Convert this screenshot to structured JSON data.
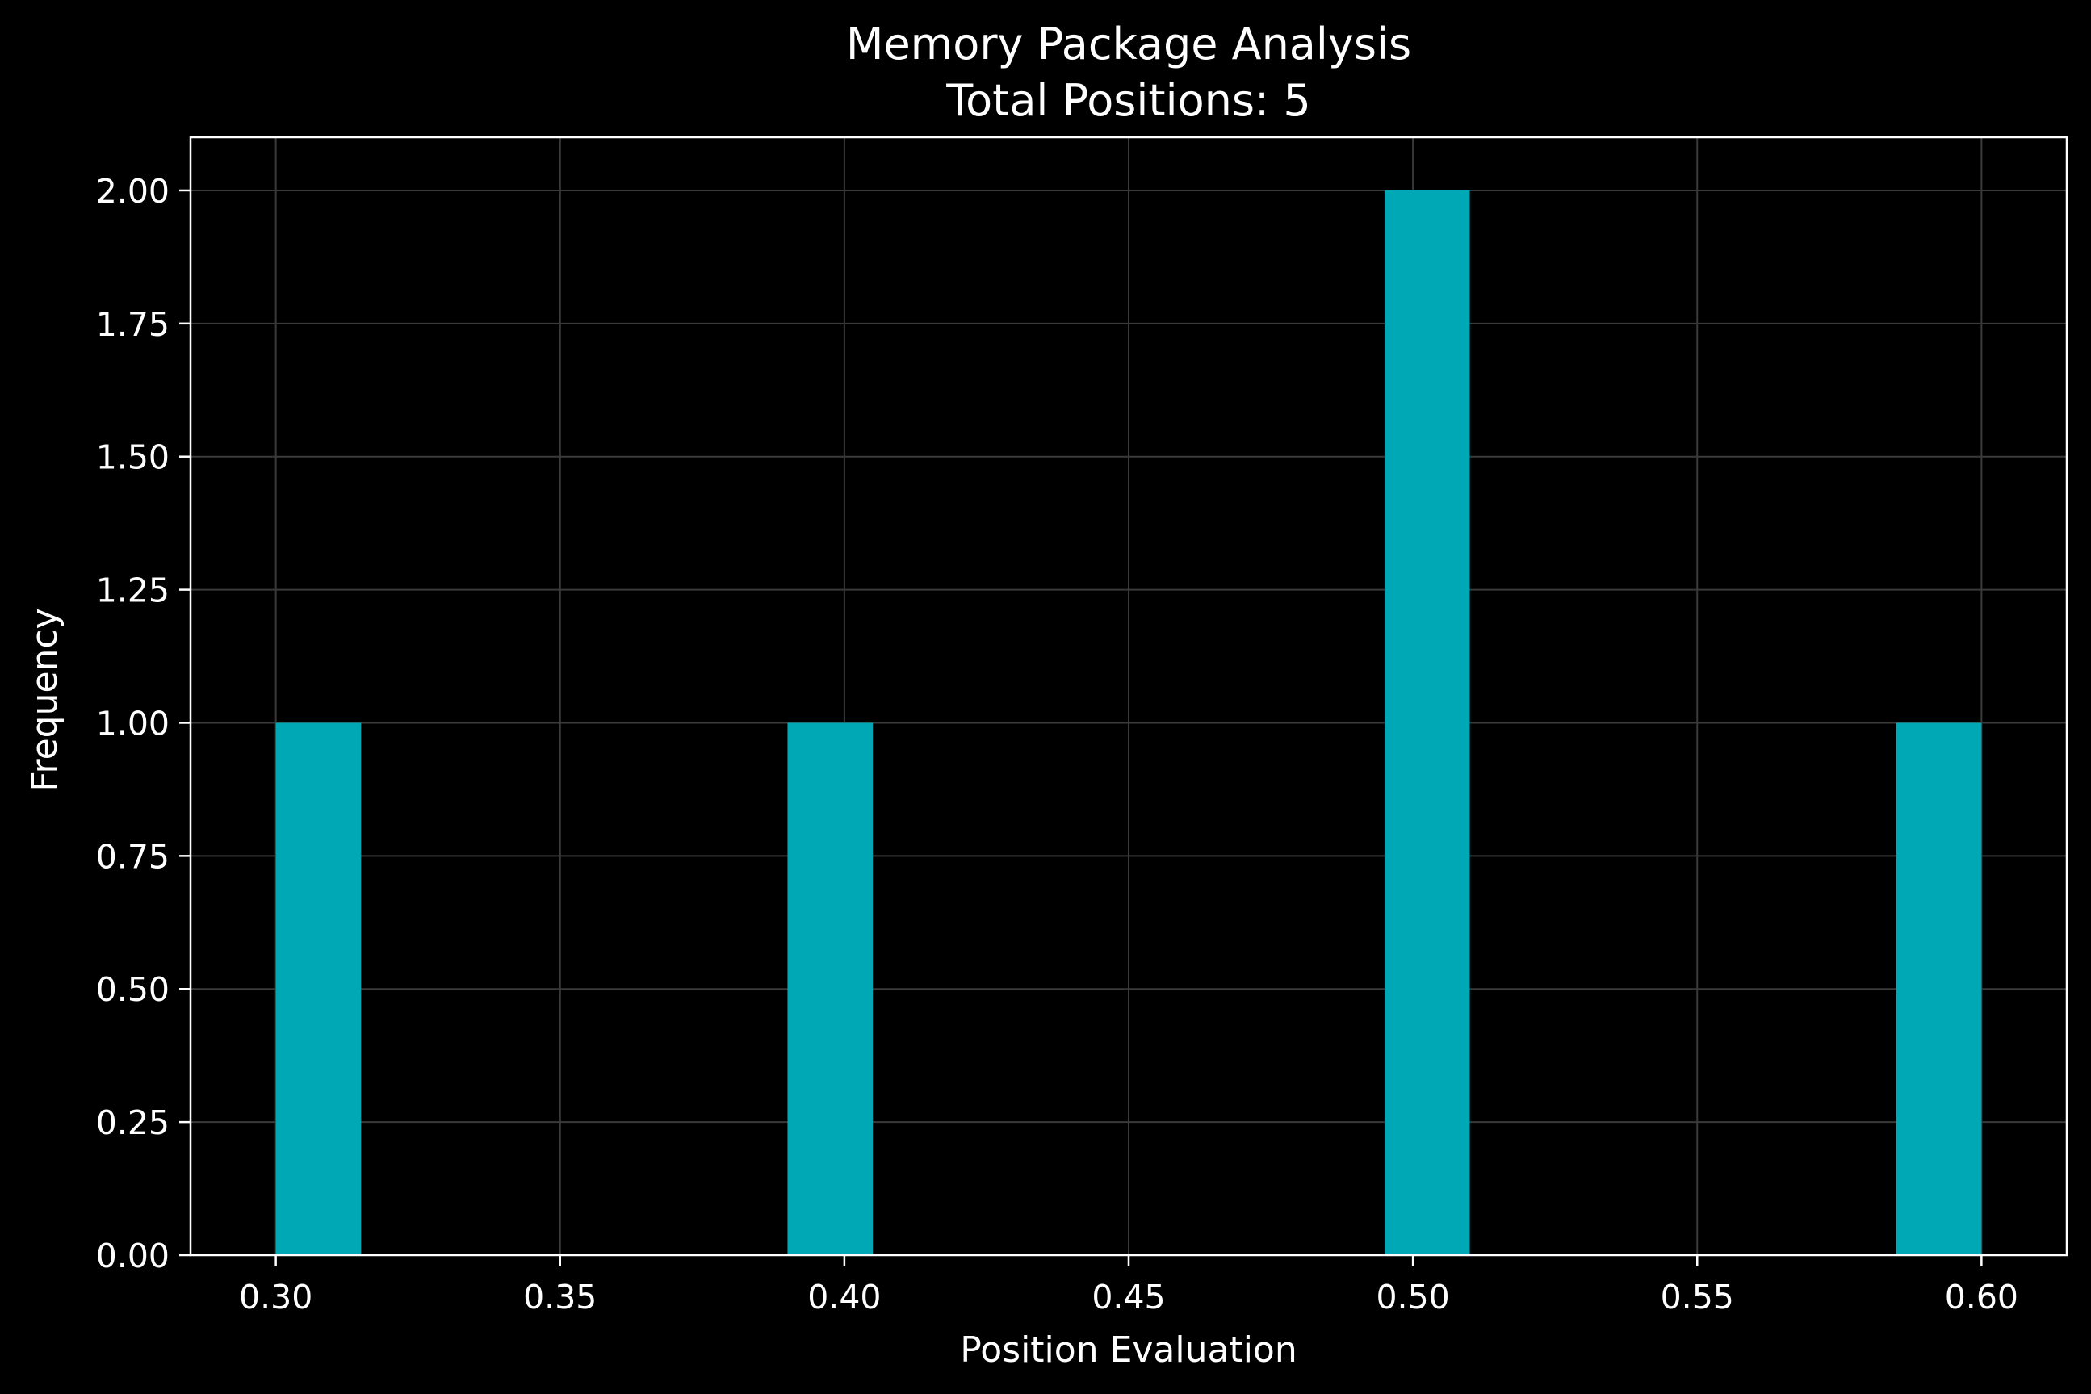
{
  "chart_data": {
    "type": "bar",
    "title": "Memory Package Analysis",
    "subtitle": "Total Positions: 5",
    "xlabel": "Position Evaluation",
    "ylabel": "Frequency",
    "xlim": [
      0.285,
      0.615
    ],
    "ylim": [
      0,
      2.1
    ],
    "x_ticks": [
      "0.30",
      "0.35",
      "0.40",
      "0.45",
      "0.50",
      "0.55",
      "0.60"
    ],
    "y_ticks": [
      "0.00",
      "0.25",
      "0.50",
      "0.75",
      "1.00",
      "1.25",
      "1.50",
      "1.75",
      "2.00"
    ],
    "grid": true,
    "bins": [
      {
        "x0": 0.3,
        "x1": 0.315,
        "count": 1
      },
      {
        "x0": 0.39,
        "x1": 0.405,
        "count": 1
      },
      {
        "x0": 0.495,
        "x1": 0.51,
        "count": 2
      },
      {
        "x0": 0.585,
        "x1": 0.6,
        "count": 1
      }
    ],
    "colors": {
      "background": "#000000",
      "bar": "#00a8b5",
      "axis": "#ffffff",
      "text": "#ffffff",
      "grid": "#3a3a3a"
    }
  }
}
